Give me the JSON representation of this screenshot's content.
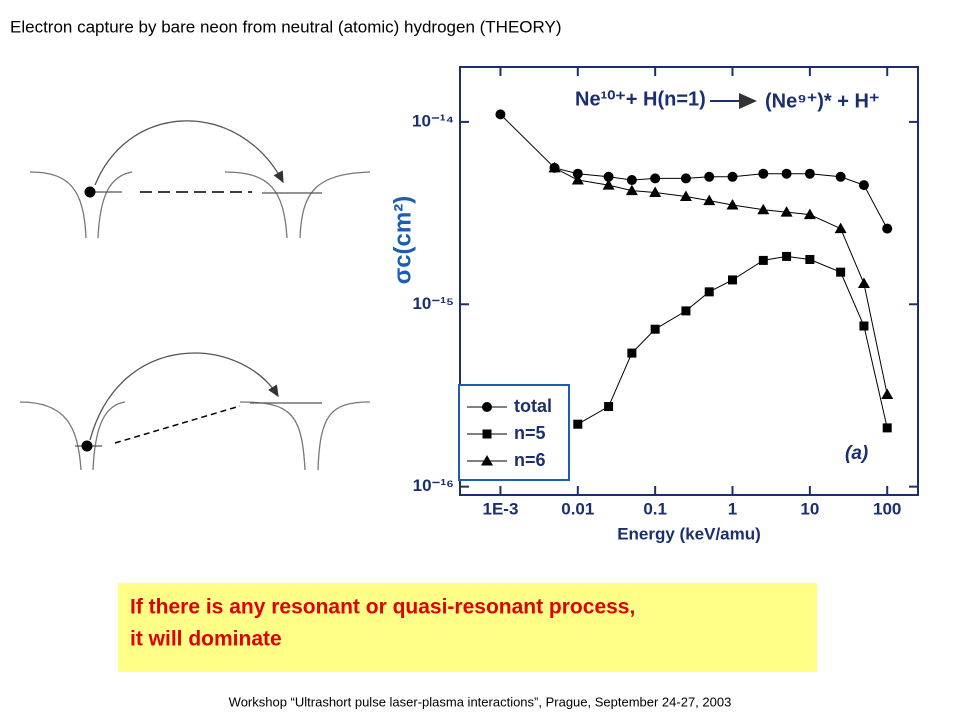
{
  "header": {
    "title": "Electron capture by bare neon from neutral (atomic) hydrogen (THEORY)"
  },
  "callout": {
    "lines": [
      "If there is any resonant or quasi-resonant process,",
      "it will dominate"
    ]
  },
  "footer": "Workshop “Ultrashort pulse laser-plasma interactions”, Prague, September 24-27, 2003",
  "chart_data": {
    "type": "line",
    "reaction": {
      "left": "Ne¹⁰⁺+ H(n=1)",
      "right": "(Ne⁹⁺)* + H⁺"
    },
    "annotation": "(a)",
    "x_label": "Energy (keV/amu)",
    "y_label": "σc(cm²)",
    "x": [
      0.001,
      0.005,
      0.01,
      0.025,
      0.05,
      0.1,
      0.25,
      0.5,
      1,
      2.5,
      5,
      10,
      25,
      50,
      100
    ],
    "series": [
      {
        "name": "total",
        "color": "#000000",
        "marker": "circle",
        "values": [
          1.1e-14,
          5.6e-15,
          5.2e-15,
          5e-15,
          4.8e-15,
          4.9e-15,
          4.9e-15,
          5e-15,
          5e-15,
          5.2e-15,
          5.2e-15,
          5.2e-15,
          5e-15,
          4.5e-15,
          2.6e-15
        ]
      },
      {
        "name": "n=5",
        "color": "#000000",
        "marker": "square",
        "values": [
          null,
          null,
          2.2e-16,
          2.75e-16,
          5.4e-16,
          7.3e-16,
          9.2e-16,
          1.17e-15,
          1.36e-15,
          1.74e-15,
          1.83e-15,
          1.76e-15,
          1.5e-15,
          7.6e-16,
          2.1e-16
        ]
      },
      {
        "name": "n=6",
        "color": "#000000",
        "marker": "triangle",
        "values": [
          null,
          5.6e-15,
          4.8e-15,
          4.5e-15,
          4.2e-15,
          4.1e-15,
          3.9e-15,
          3.7e-15,
          3.5e-15,
          3.3e-15,
          3.2e-15,
          3.1e-15,
          2.6e-15,
          1.3e-15,
          3.2e-16
        ]
      }
    ],
    "xscale": "log",
    "yscale": "log",
    "xlim": [
      0.0003,
      250
    ],
    "ylim": [
      9e-17,
      2e-14
    ],
    "xticks": [
      {
        "value": 0.001,
        "label": "1E-3"
      },
      0.01,
      0.1,
      1,
      10,
      100
    ],
    "yticks": [
      {
        "value": 1e-16,
        "label": "10⁻¹⁶"
      },
      {
        "value": 1e-15,
        "label": "10⁻¹⁵"
      },
      {
        "value": 1e-14,
        "label": "10⁻¹⁴"
      }
    ],
    "legend": "lower left",
    "grid": false
  }
}
